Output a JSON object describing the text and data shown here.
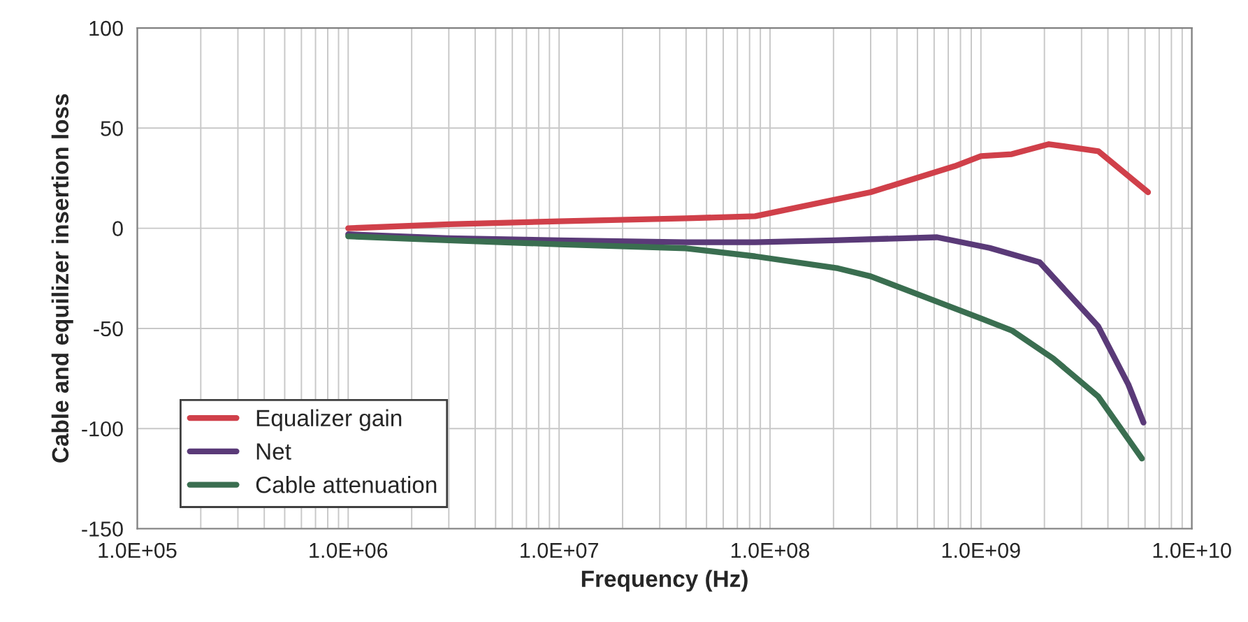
{
  "chart_data": {
    "type": "line",
    "xlabel": "Frequency (Hz)",
    "ylabel": "Cable and equilizer insertion loss",
    "log": "x",
    "grid": true,
    "legend": "bottom left",
    "line_style": "solid",
    "marker": "none",
    "xlim": [
      100000,
      10000000000
    ],
    "xticks": [
      {
        "value": 100000,
        "label": "1.0E+05"
      },
      {
        "value": 1000000,
        "label": "1.0E+06"
      },
      {
        "value": 10000000,
        "label": "1.0E+07"
      },
      {
        "value": 100000000,
        "label": "1.0E+08"
      },
      {
        "value": 1000000000,
        "label": "1.0E+09"
      },
      {
        "value": 10000000000,
        "label": "1.0E+10"
      }
    ],
    "ylim": [
      -150,
      100
    ],
    "yticks": [
      -150,
      -100,
      -50,
      0,
      50,
      100
    ],
    "series": [
      {
        "name": "Equalizer gain",
        "color": "#d0404a",
        "x": [
          1000000,
          3000000,
          10000000,
          40000000,
          85000000,
          300000000,
          750000000,
          1000000000,
          1400000000,
          2100000000,
          3600000000,
          6200000000
        ],
        "values": [
          0,
          2,
          3.5,
          5,
          6,
          18,
          31,
          36,
          37,
          42,
          38.5,
          18
        ]
      },
      {
        "name": "Net",
        "color": "#5a3a78",
        "x": [
          1000000,
          3000000,
          10000000,
          40000000,
          85000000,
          200000000,
          620000000,
          1100000000,
          1900000000,
          3600000000,
          5000000000,
          5900000000
        ],
        "values": [
          -3,
          -5,
          -6,
          -7,
          -7,
          -6,
          -4.5,
          -9.8,
          -17,
          -49,
          -78,
          -97
        ]
      },
      {
        "name": "Cable attenuation",
        "color": "#3a6e50",
        "x": [
          1000000,
          3000000,
          10000000,
          40000000,
          85000000,
          210000000,
          300000000,
          1000000000,
          1400000000,
          2200000000,
          3600000000,
          5800000000
        ],
        "values": [
          -4,
          -6,
          -8,
          -10,
          -14,
          -20,
          -24,
          -45,
          -51,
          -65,
          -84,
          -115
        ]
      }
    ]
  }
}
